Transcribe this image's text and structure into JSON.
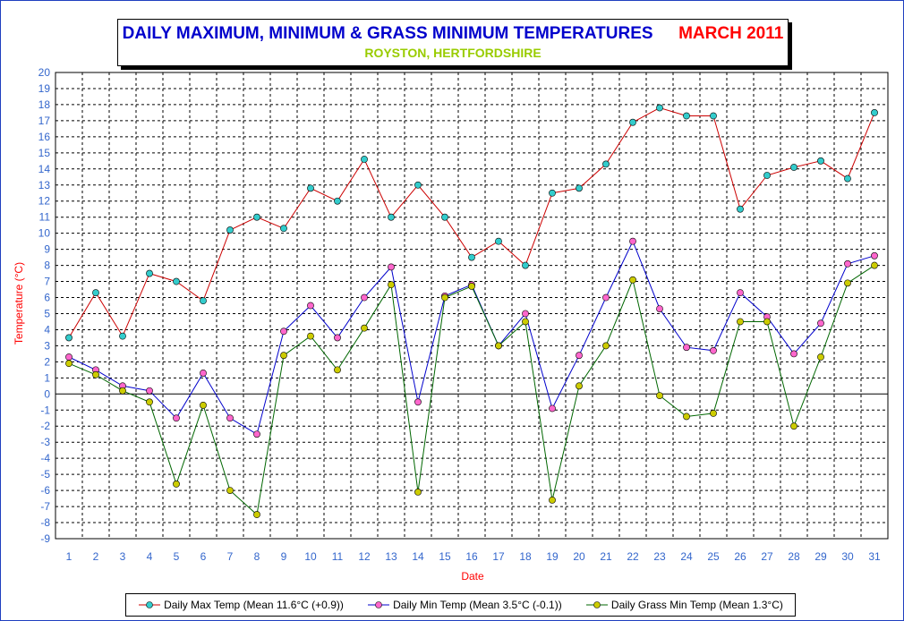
{
  "title": {
    "main": "DAILY MAXIMUM, MINIMUM & GRASS MINIMUM TEMPERATURES",
    "month": "MARCH 2011",
    "location": "ROYSTON, HERTFORDSHIRE"
  },
  "colors": {
    "title_main": "#0000cc",
    "title_month": "#ff0000",
    "title_location": "#99cc00",
    "axis_labels": "#ff0000",
    "tick_labels": "#3366cc",
    "max_line": "#cc0000",
    "max_marker": "#33cccc",
    "min_line": "#0000cc",
    "min_marker": "#ff66cc",
    "grass_line": "#006600",
    "grass_marker": "#cccc00"
  },
  "chart_data": {
    "type": "line",
    "xlabel": "Date",
    "ylabel": "Temperature (°C)",
    "x": [
      1,
      2,
      3,
      4,
      5,
      6,
      7,
      8,
      9,
      10,
      11,
      12,
      13,
      14,
      15,
      16,
      17,
      18,
      19,
      20,
      21,
      22,
      23,
      24,
      25,
      26,
      27,
      28,
      29,
      30,
      31
    ],
    "xlim": [
      0.5,
      31.5
    ],
    "ylim": [
      -9,
      20
    ],
    "yticks": [
      -9,
      -8,
      -7,
      -6,
      -5,
      -4,
      -3,
      -2,
      -1,
      0,
      1,
      2,
      3,
      4,
      5,
      6,
      7,
      8,
      9,
      10,
      11,
      12,
      13,
      14,
      15,
      16,
      17,
      18,
      19,
      20
    ],
    "grid": true,
    "legend_position": "bottom",
    "series": [
      {
        "name": "Daily Max Temp (Mean 11.6°C (+0.9))",
        "values": [
          3.5,
          6.3,
          3.6,
          7.5,
          7.0,
          5.8,
          10.2,
          11.0,
          10.3,
          12.8,
          12.0,
          14.6,
          11.0,
          13.0,
          11.0,
          8.5,
          9.5,
          8.0,
          12.5,
          12.8,
          14.3,
          16.9,
          17.8,
          17.3,
          17.3,
          11.5,
          13.6,
          14.1,
          14.5,
          13.4,
          17.5
        ]
      },
      {
        "name": "Daily Min Temp (Mean 3.5°C (-0.1))",
        "values": [
          2.3,
          1.5,
          0.5,
          0.2,
          -1.5,
          1.3,
          -1.5,
          -2.5,
          3.9,
          5.5,
          3.5,
          6.0,
          7.9,
          -0.5,
          6.1,
          6.8,
          3.0,
          5.0,
          -0.9,
          2.4,
          6.0,
          9.5,
          5.3,
          2.9,
          2.7,
          6.3,
          4.8,
          2.5,
          4.4,
          8.1,
          8.6
        ]
      },
      {
        "name": "Daily Grass Min Temp (Mean 1.3°C)",
        "values": [
          1.9,
          1.2,
          0.2,
          -0.5,
          -5.6,
          -0.7,
          -6.0,
          -7.5,
          2.4,
          3.6,
          1.5,
          4.1,
          6.8,
          -6.1,
          6.0,
          6.7,
          3.0,
          4.5,
          -6.6,
          0.5,
          3.0,
          7.1,
          -0.1,
          -1.4,
          -1.2,
          4.5,
          4.5,
          -2.0,
          2.3,
          6.9,
          8.0
        ]
      }
    ]
  }
}
